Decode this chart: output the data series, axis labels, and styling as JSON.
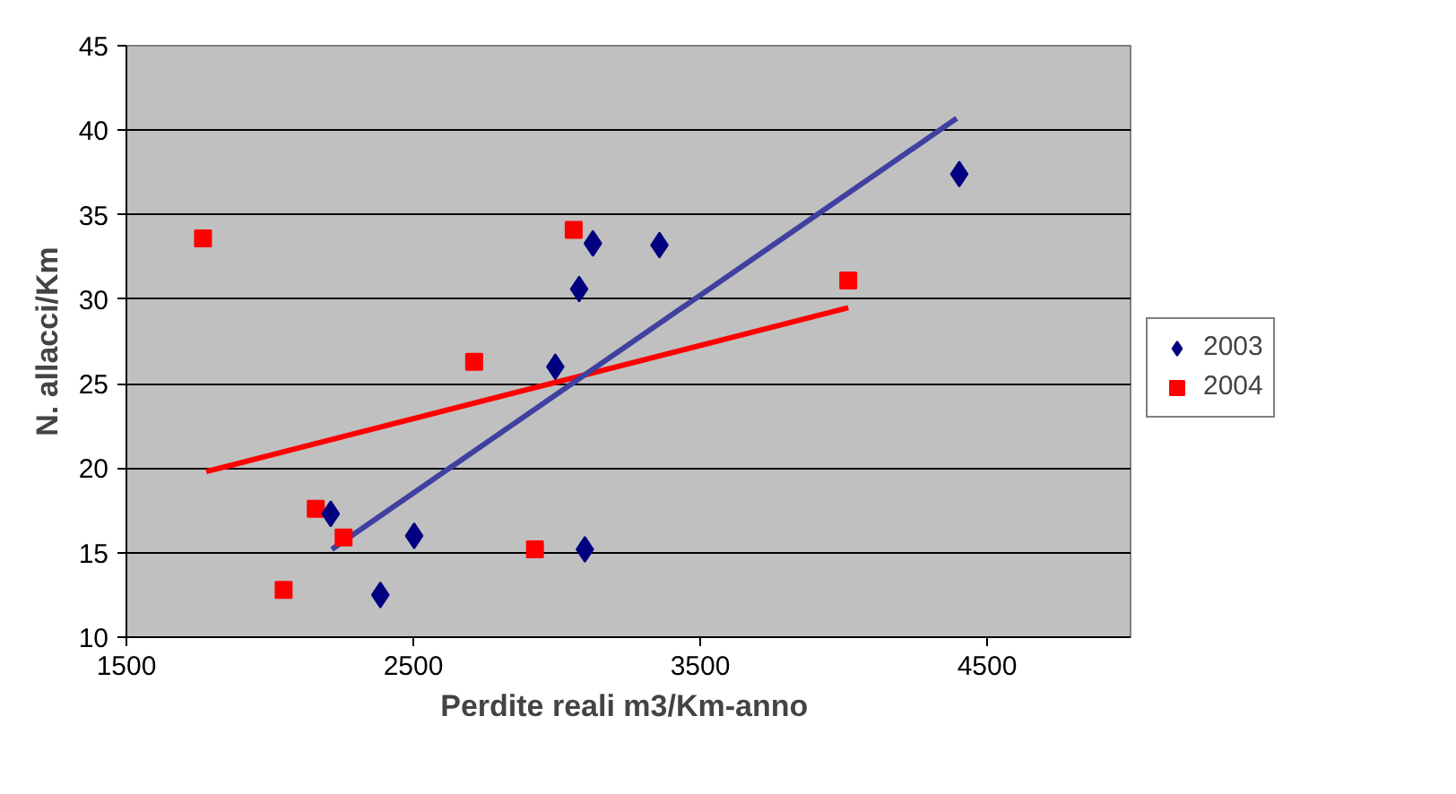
{
  "chart_data": {
    "type": "scatter",
    "xlabel": "Perdite reali  m3/Km-anno",
    "ylabel": "N. allacci/Km",
    "xlim": [
      1500,
      5000
    ],
    "xticks": [
      1500,
      2500,
      3500,
      4500
    ],
    "ylim": [
      10,
      45
    ],
    "yticks": [
      10,
      15,
      20,
      25,
      30,
      35,
      40,
      45
    ],
    "grid": "y",
    "legend": "right",
    "series": [
      {
        "name": "2003",
        "color": "#000080",
        "marker": "diamond",
        "x": [
          3126,
          3358,
          3078,
          2995,
          2212,
          2503,
          2385,
          3098,
          4403
        ],
        "values": [
          33.3,
          33.2,
          30.6,
          26.0,
          17.3,
          16.0,
          12.5,
          15.2,
          37.4
        ]
      },
      {
        "name": "2004",
        "color": "#ff0000",
        "marker": "square",
        "x": [
          1767,
          3059,
          2712,
          2160,
          2257,
          2048,
          2924,
          4016
        ],
        "values": [
          33.6,
          34.1,
          26.3,
          17.6,
          15.9,
          12.8,
          15.2,
          31.1
        ]
      },
      {
        "type": "line",
        "color": "#4040a0",
        "marker": "none",
        "x": [
          2216,
          4394
        ],
        "values": [
          15.2,
          40.7
        ]
      },
      {
        "type": "line",
        "color": "#ff0000",
        "marker": "none",
        "x": [
          1778,
          4016
        ],
        "values": [
          19.8,
          29.5
        ]
      }
    ]
  }
}
